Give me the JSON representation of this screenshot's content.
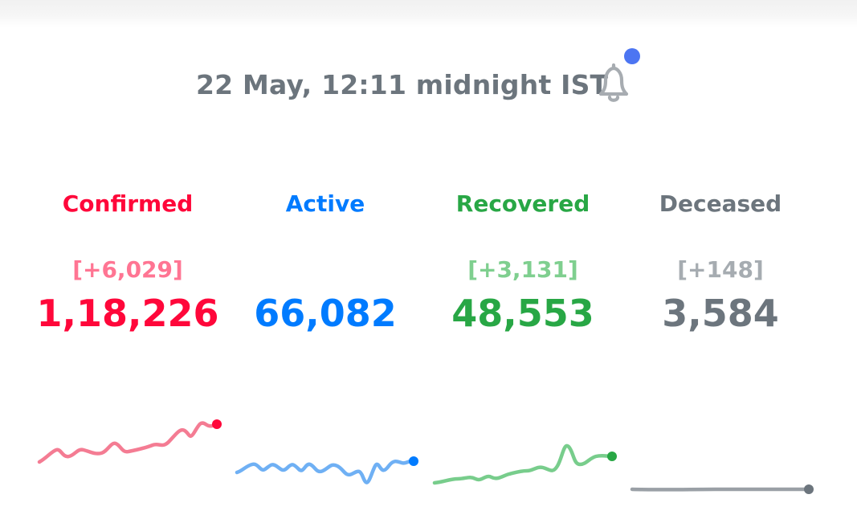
{
  "header": {
    "timestamp": "22 May, 12:11 midnight IST",
    "bell_icon": "bell-icon",
    "notification_dot_color": "#4c75f2"
  },
  "stats": [
    {
      "key": "confirmed",
      "label": "Confirmed",
      "delta": "[+6,029]",
      "total": "1,18,226",
      "color": "#ff073a",
      "delta_color": "#ff7593",
      "spark_color": "#f47c93"
    },
    {
      "key": "active",
      "label": "Active",
      "delta": "",
      "total": "66,082",
      "color": "#007bff",
      "delta_color": "#66b0ff",
      "spark_color": "#6fb0f4"
    },
    {
      "key": "recovered",
      "label": "Recovered",
      "delta": "[+3,131]",
      "total": "48,553",
      "color": "#28a745",
      "delta_color": "#7fcf8f",
      "spark_color": "#78cd8c"
    },
    {
      "key": "deceased",
      "label": "Deceased",
      "delta": "[+148]",
      "total": "3,584",
      "color": "#6c757d",
      "delta_color": "#a6acb1",
      "spark_color": "#9aa0a6"
    }
  ]
}
